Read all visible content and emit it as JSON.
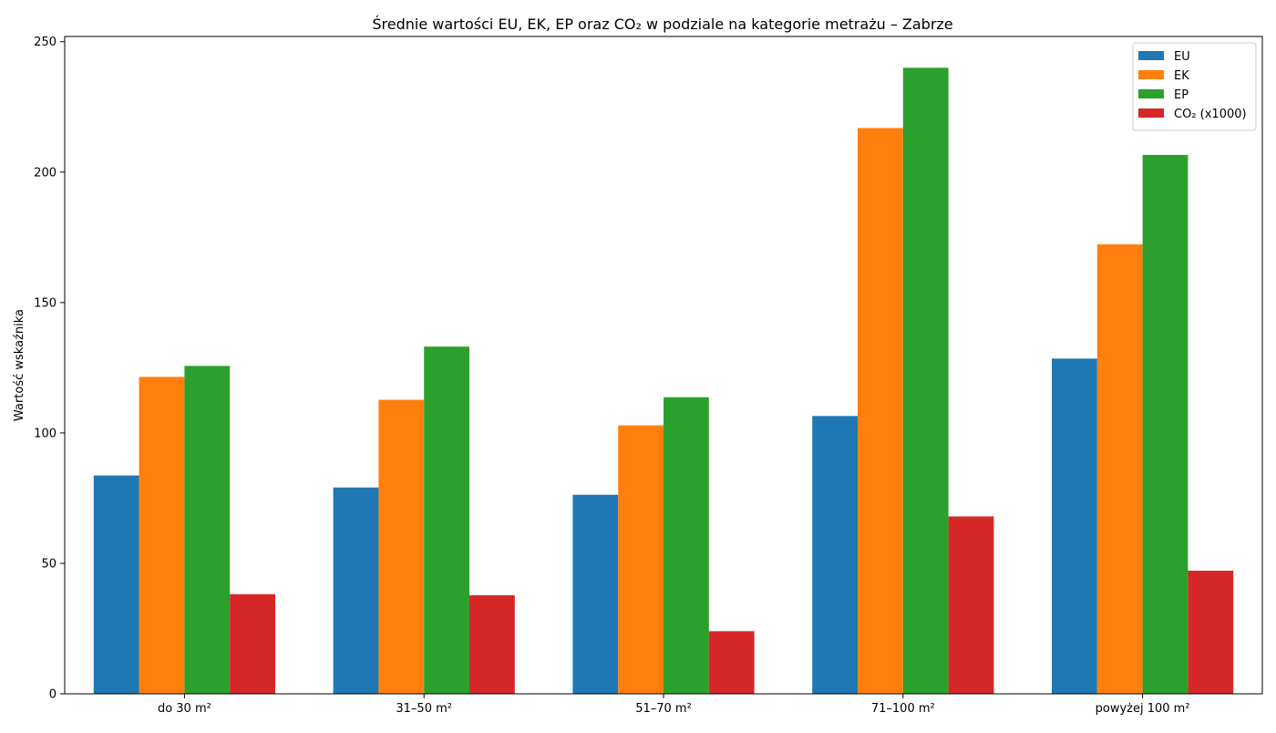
{
  "chart_data": {
    "type": "bar",
    "title": "Średnie wartości EU, EK, EP oraz CO₂ w podziale na kategorie metrażu – Zabrze",
    "xlabel": "",
    "ylabel": "Wartość wskaźnika",
    "categories": [
      "do 30 m²",
      "31–50 m²",
      "51–70 m²",
      "71–100 m²",
      "powyżej 100 m²"
    ],
    "series": [
      {
        "name": "EU",
        "color": "#1f77b4",
        "values": [
          83.7,
          79.1,
          76.3,
          106.5,
          128.5
        ]
      },
      {
        "name": "EK",
        "color": "#ff7f0e",
        "values": [
          121.5,
          112.7,
          102.9,
          216.9,
          172.3
        ]
      },
      {
        "name": "EP",
        "color": "#2ca02c",
        "values": [
          125.7,
          133.1,
          113.7,
          240.0,
          206.6
        ]
      },
      {
        "name": "CO₂ (x1000)",
        "color": "#d62728",
        "values": [
          38.2,
          37.8,
          24.0,
          68.0,
          47.2
        ]
      }
    ],
    "ylim": [
      0,
      252
    ],
    "yticks": [
      0,
      50,
      100,
      150,
      200,
      250
    ],
    "legend_position": "top-right",
    "grid": false
  }
}
